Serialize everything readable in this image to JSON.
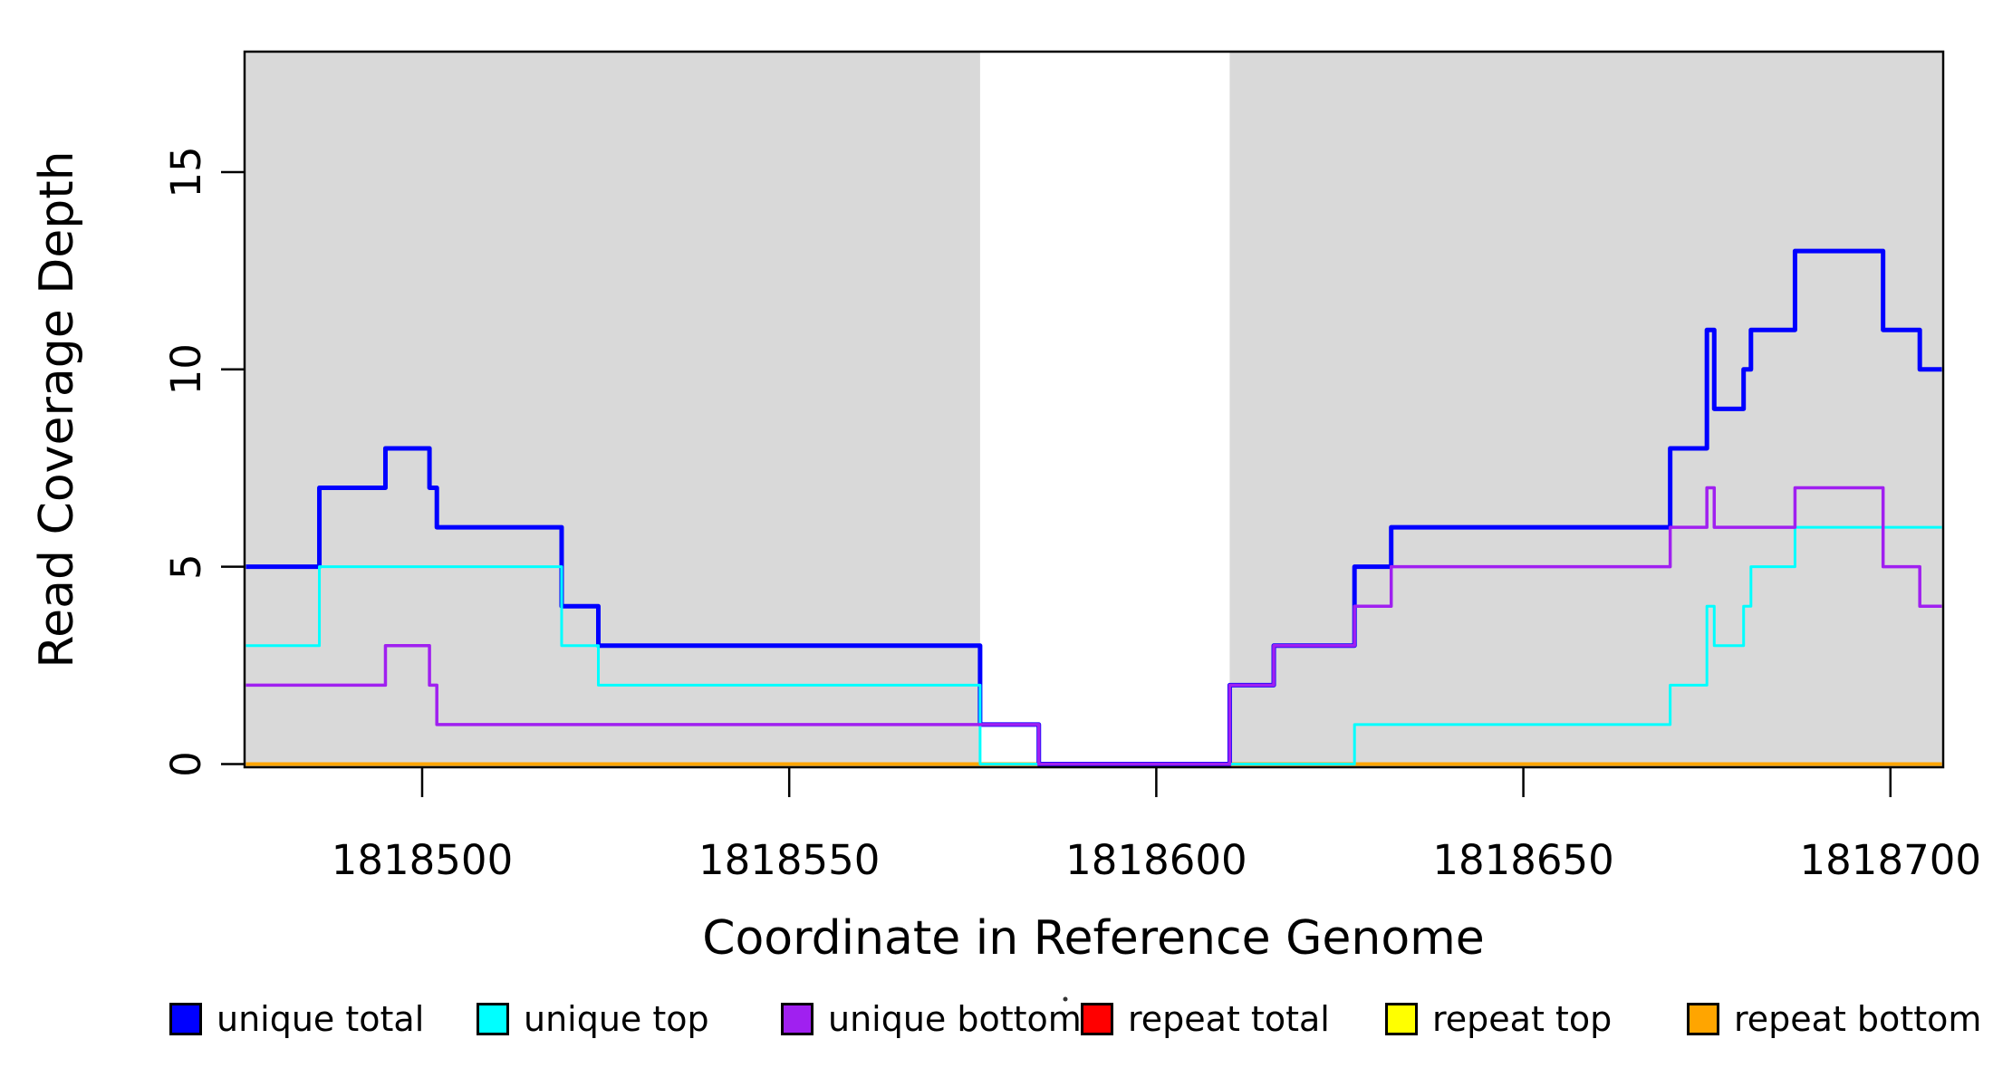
{
  "chart_data": {
    "type": "line",
    "subtype": "step",
    "title": "",
    "xlabel": "Coordinate in Reference Genome",
    "ylabel": "Read Coverage Depth",
    "xlim": [
      1818476,
      1818707
    ],
    "ylim": [
      0,
      18
    ],
    "grid": false,
    "x_ticks": [
      {
        "value": 1818500,
        "label": "1818500"
      },
      {
        "value": 1818550,
        "label": "1818550"
      },
      {
        "value": 1818600,
        "label": "1818600"
      },
      {
        "value": 1818650,
        "label": "1818650"
      },
      {
        "value": 1818700,
        "label": "1818700"
      }
    ],
    "y_ticks": [
      {
        "value": 0,
        "label": "0"
      },
      {
        "value": 5,
        "label": "5"
      },
      {
        "value": 10,
        "label": "10"
      },
      {
        "value": 15,
        "label": "15"
      }
    ],
    "background_bands": [
      {
        "x_start": 1818476,
        "x_end": 1818576,
        "color": "#D9D9D9"
      },
      {
        "x_start": 1818610,
        "x_end": 1818707,
        "color": "#D9D9D9"
      }
    ],
    "series": [
      {
        "name": "repeat total",
        "color": "#FF0000",
        "line_width": 3.5,
        "steps": [
          [
            1818476,
            0
          ]
        ]
      },
      {
        "name": "repeat top",
        "color": "#FFFF00",
        "line_width": 3.5,
        "steps": [
          [
            1818476,
            0
          ]
        ]
      },
      {
        "name": "repeat bottom",
        "color": "#FFA500",
        "line_width": 4,
        "steps": [
          [
            1818476,
            0
          ]
        ]
      },
      {
        "name": "unique total",
        "color": "#0000FF",
        "line_width": 5,
        "steps": [
          [
            1818476,
            5
          ],
          [
            1818486,
            7
          ],
          [
            1818495,
            8
          ],
          [
            1818501,
            7
          ],
          [
            1818502,
            6
          ],
          [
            1818519,
            4
          ],
          [
            1818524,
            3
          ],
          [
            1818576,
            1
          ],
          [
            1818584,
            0
          ],
          [
            1818610,
            2
          ],
          [
            1818616,
            3
          ],
          [
            1818627,
            5
          ],
          [
            1818632,
            6
          ],
          [
            1818670,
            8
          ],
          [
            1818675,
            11
          ],
          [
            1818676,
            9
          ],
          [
            1818680,
            10
          ],
          [
            1818681,
            11
          ],
          [
            1818687,
            13
          ],
          [
            1818699,
            11
          ],
          [
            1818704,
            10
          ]
        ]
      },
      {
        "name": "unique top",
        "color": "#00FFFF",
        "line_width": 3,
        "steps": [
          [
            1818476,
            3
          ],
          [
            1818486,
            5
          ],
          [
            1818519,
            3
          ],
          [
            1818524,
            2
          ],
          [
            1818576,
            0
          ],
          [
            1818627,
            1
          ],
          [
            1818670,
            2
          ],
          [
            1818675,
            4
          ],
          [
            1818676,
            3
          ],
          [
            1818680,
            4
          ],
          [
            1818681,
            5
          ],
          [
            1818687,
            6
          ]
        ]
      },
      {
        "name": "unique bottom",
        "color": "#A020F0",
        "line_width": 3.5,
        "steps": [
          [
            1818476,
            2
          ],
          [
            1818495,
            3
          ],
          [
            1818501,
            2
          ],
          [
            1818502,
            1
          ],
          [
            1818584,
            0
          ],
          [
            1818610,
            2
          ],
          [
            1818616,
            3
          ],
          [
            1818627,
            4
          ],
          [
            1818632,
            5
          ],
          [
            1818670,
            6
          ],
          [
            1818675,
            7
          ],
          [
            1818676,
            6
          ],
          [
            1818687,
            7
          ],
          [
            1818699,
            5
          ],
          [
            1818704,
            4
          ]
        ]
      }
    ],
    "legend": {
      "position": "bottom",
      "items": [
        {
          "label": "unique total",
          "color": "#0000FF"
        },
        {
          "label": "unique top",
          "color": "#00FFFF"
        },
        {
          "label": "unique bottom",
          "color": "#A020F0"
        },
        {
          "label": "repeat total",
          "color": "#FF0000"
        },
        {
          "label": "repeat top",
          "color": "#FFFF00"
        },
        {
          "label": "repeat bottom",
          "color": "#FFA500"
        }
      ]
    }
  }
}
